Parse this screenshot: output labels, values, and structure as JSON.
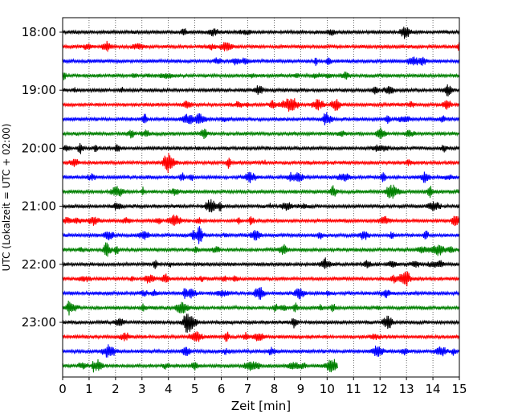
{
  "chart_data": {
    "type": "line",
    "xlabel": "Zeit  [min]",
    "ylabel": "UTC (Lokalzeit = UTC + 02:00)",
    "xlim": [
      0,
      15
    ],
    "x_ticks": [
      "0",
      "1",
      "2",
      "3",
      "4",
      "5",
      "6",
      "7",
      "8",
      "9",
      "10",
      "11",
      "12",
      "13",
      "14",
      "15"
    ],
    "y_tick_labels": [
      "18:00",
      "19:00",
      "20:00",
      "21:00",
      "22:00",
      "23:00"
    ],
    "y_tick_rows": [
      0,
      4,
      8,
      12,
      16,
      20
    ],
    "grid": "vertical dotted",
    "row_minutes": 15,
    "color_cycle": [
      "#000000",
      "#ff0000",
      "#0000ff",
      "#008000"
    ],
    "rows": [
      {
        "start": "18:00",
        "end_min": 15
      },
      {
        "start": "18:15",
        "end_min": 15
      },
      {
        "start": "18:30",
        "end_min": 15
      },
      {
        "start": "18:45",
        "end_min": 15
      },
      {
        "start": "19:00",
        "end_min": 15
      },
      {
        "start": "19:15",
        "end_min": 15
      },
      {
        "start": "19:30",
        "end_min": 15
      },
      {
        "start": "19:45",
        "end_min": 15
      },
      {
        "start": "20:00",
        "end_min": 15
      },
      {
        "start": "20:15",
        "end_min": 15
      },
      {
        "start": "20:30",
        "end_min": 15
      },
      {
        "start": "20:45",
        "end_min": 15
      },
      {
        "start": "21:00",
        "end_min": 15
      },
      {
        "start": "21:15",
        "end_min": 15
      },
      {
        "start": "21:30",
        "end_min": 15
      },
      {
        "start": "21:45",
        "end_min": 15
      },
      {
        "start": "22:00",
        "end_min": 15
      },
      {
        "start": "22:15",
        "end_min": 15
      },
      {
        "start": "22:30",
        "end_min": 15
      },
      {
        "start": "22:45",
        "end_min": 15
      },
      {
        "start": "23:00",
        "end_min": 15
      },
      {
        "start": "23:15",
        "end_min": 15
      },
      {
        "start": "23:30",
        "end_min": 15
      },
      {
        "start": "23:45",
        "end_min": 10.4
      }
    ]
  }
}
